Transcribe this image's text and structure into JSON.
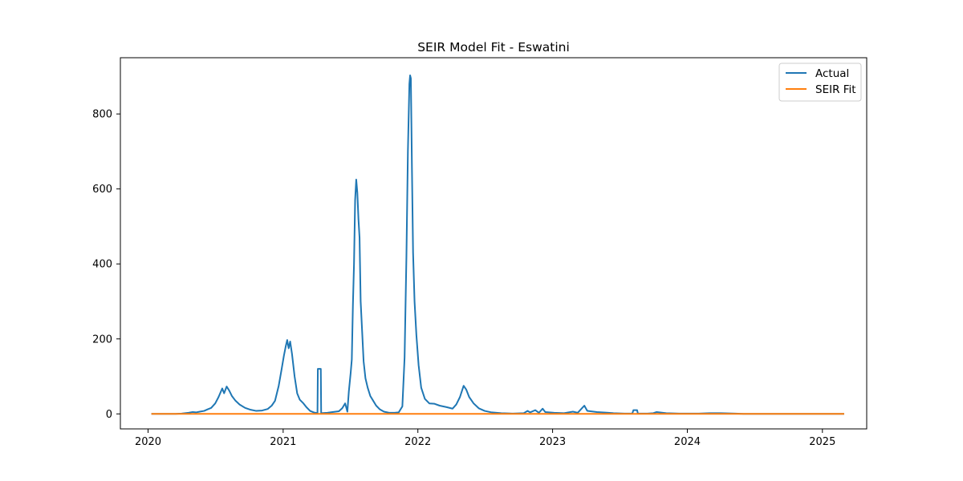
{
  "chart_data": {
    "type": "line",
    "title": "SEIR Model Fit - Eswatini",
    "xlabel": "",
    "ylabel": "",
    "x_axis": "date",
    "xlim": [
      "2019-10-18",
      "2025-05-01"
    ],
    "ylim": [
      -40,
      950
    ],
    "xticks": [
      "2020",
      "2021",
      "2022",
      "2023",
      "2024",
      "2025"
    ],
    "yticks": [
      0,
      200,
      400,
      600,
      800
    ],
    "grid": false,
    "legend_position": "top-right",
    "series": [
      {
        "name": "Actual",
        "color": "#1f77b4",
        "points": [
          [
            "2020-01-10",
            0
          ],
          [
            "2020-03-15",
            0
          ],
          [
            "2020-04-01",
            1
          ],
          [
            "2020-04-20",
            3
          ],
          [
            "2020-05-01",
            5
          ],
          [
            "2020-05-10",
            4
          ],
          [
            "2020-05-20",
            6
          ],
          [
            "2020-06-01",
            8
          ],
          [
            "2020-06-10",
            12
          ],
          [
            "2020-06-20",
            16
          ],
          [
            "2020-07-01",
            28
          ],
          [
            "2020-07-10",
            45
          ],
          [
            "2020-07-20",
            68
          ],
          [
            "2020-07-25",
            55
          ],
          [
            "2020-08-01",
            73
          ],
          [
            "2020-08-08",
            62
          ],
          [
            "2020-08-15",
            48
          ],
          [
            "2020-08-25",
            35
          ],
          [
            "2020-09-05",
            25
          ],
          [
            "2020-09-20",
            16
          ],
          [
            "2020-10-05",
            11
          ],
          [
            "2020-10-20",
            8
          ],
          [
            "2020-11-05",
            9
          ],
          [
            "2020-11-20",
            13
          ],
          [
            "2020-12-01",
            22
          ],
          [
            "2020-12-10",
            35
          ],
          [
            "2020-12-20",
            75
          ],
          [
            "2020-12-28",
            120
          ],
          [
            "2021-01-03",
            155
          ],
          [
            "2021-01-08",
            180
          ],
          [
            "2021-01-12",
            197
          ],
          [
            "2021-01-16",
            175
          ],
          [
            "2021-01-20",
            193
          ],
          [
            "2021-01-25",
            160
          ],
          [
            "2021-02-01",
            100
          ],
          [
            "2021-02-08",
            55
          ],
          [
            "2021-02-15",
            38
          ],
          [
            "2021-02-25",
            28
          ],
          [
            "2021-03-05",
            18
          ],
          [
            "2021-03-15",
            8
          ],
          [
            "2021-03-25",
            4
          ],
          [
            "2021-04-04",
            2
          ],
          [
            "2021-04-05",
            120
          ],
          [
            "2021-04-13",
            120
          ],
          [
            "2021-04-14",
            2
          ],
          [
            "2021-05-01",
            3
          ],
          [
            "2021-05-15",
            5
          ],
          [
            "2021-06-01",
            7
          ],
          [
            "2021-06-10",
            15
          ],
          [
            "2021-06-18",
            28
          ],
          [
            "2021-06-24",
            6
          ],
          [
            "2021-06-28",
            60
          ],
          [
            "2021-07-03",
            110
          ],
          [
            "2021-07-06",
            145
          ],
          [
            "2021-07-09",
            290
          ],
          [
            "2021-07-12",
            400
          ],
          [
            "2021-07-15",
            570
          ],
          [
            "2021-07-18",
            625
          ],
          [
            "2021-07-21",
            590
          ],
          [
            "2021-07-24",
            520
          ],
          [
            "2021-07-27",
            470
          ],
          [
            "2021-07-30",
            300
          ],
          [
            "2021-08-03",
            220
          ],
          [
            "2021-08-07",
            140
          ],
          [
            "2021-08-12",
            95
          ],
          [
            "2021-08-18",
            70
          ],
          [
            "2021-08-25",
            48
          ],
          [
            "2021-09-02",
            35
          ],
          [
            "2021-09-10",
            22
          ],
          [
            "2021-09-20",
            12
          ],
          [
            "2021-10-01",
            6
          ],
          [
            "2021-10-15",
            3
          ],
          [
            "2021-10-30",
            3
          ],
          [
            "2021-11-10",
            4
          ],
          [
            "2021-11-20",
            20
          ],
          [
            "2021-11-26",
            150
          ],
          [
            "2021-12-01",
            420
          ],
          [
            "2021-12-05",
            700
          ],
          [
            "2021-12-09",
            880
          ],
          [
            "2021-12-11",
            903
          ],
          [
            "2021-12-13",
            895
          ],
          [
            "2021-12-16",
            650
          ],
          [
            "2021-12-19",
            430
          ],
          [
            "2021-12-23",
            300
          ],
          [
            "2021-12-28",
            210
          ],
          [
            "2022-01-03",
            130
          ],
          [
            "2022-01-10",
            70
          ],
          [
            "2022-01-20",
            40
          ],
          [
            "2022-02-01",
            28
          ],
          [
            "2022-02-15",
            27
          ],
          [
            "2022-03-01",
            22
          ],
          [
            "2022-03-20",
            18
          ],
          [
            "2022-04-05",
            14
          ],
          [
            "2022-04-15",
            25
          ],
          [
            "2022-04-25",
            45
          ],
          [
            "2022-05-05",
            75
          ],
          [
            "2022-05-12",
            65
          ],
          [
            "2022-05-20",
            45
          ],
          [
            "2022-06-01",
            28
          ],
          [
            "2022-06-15",
            15
          ],
          [
            "2022-07-01",
            8
          ],
          [
            "2022-07-20",
            4
          ],
          [
            "2022-08-15",
            2
          ],
          [
            "2022-09-15",
            1
          ],
          [
            "2022-10-15",
            2
          ],
          [
            "2022-10-25",
            8
          ],
          [
            "2022-11-01",
            4
          ],
          [
            "2022-11-15",
            10
          ],
          [
            "2022-11-25",
            3
          ],
          [
            "2022-12-05",
            14
          ],
          [
            "2022-12-12",
            5
          ],
          [
            "2023-01-05",
            3
          ],
          [
            "2023-02-01",
            2
          ],
          [
            "2023-02-25",
            6
          ],
          [
            "2023-03-10",
            3
          ],
          [
            "2023-03-28",
            22
          ],
          [
            "2023-04-05",
            8
          ],
          [
            "2023-05-01",
            5
          ],
          [
            "2023-06-01",
            3
          ],
          [
            "2023-06-15",
            2
          ],
          [
            "2023-07-15",
            1
          ],
          [
            "2023-08-05",
            1
          ],
          [
            "2023-08-08",
            10
          ],
          [
            "2023-08-18",
            10
          ],
          [
            "2023-08-20",
            1
          ],
          [
            "2023-09-15",
            1
          ],
          [
            "2023-10-01",
            2
          ],
          [
            "2023-10-10",
            5
          ],
          [
            "2023-11-05",
            2
          ],
          [
            "2023-12-10",
            1
          ],
          [
            "2024-02-01",
            1
          ],
          [
            "2024-03-01",
            2
          ],
          [
            "2024-04-01",
            2
          ],
          [
            "2024-05-10",
            1
          ],
          [
            "2024-06-01",
            0
          ],
          [
            "2024-12-01",
            0
          ],
          [
            "2025-03-01",
            0
          ]
        ]
      },
      {
        "name": "SEIR Fit",
        "color": "#ff7f0e",
        "points": [
          [
            "2020-01-10",
            0
          ],
          [
            "2025-03-01",
            0
          ]
        ]
      }
    ]
  }
}
